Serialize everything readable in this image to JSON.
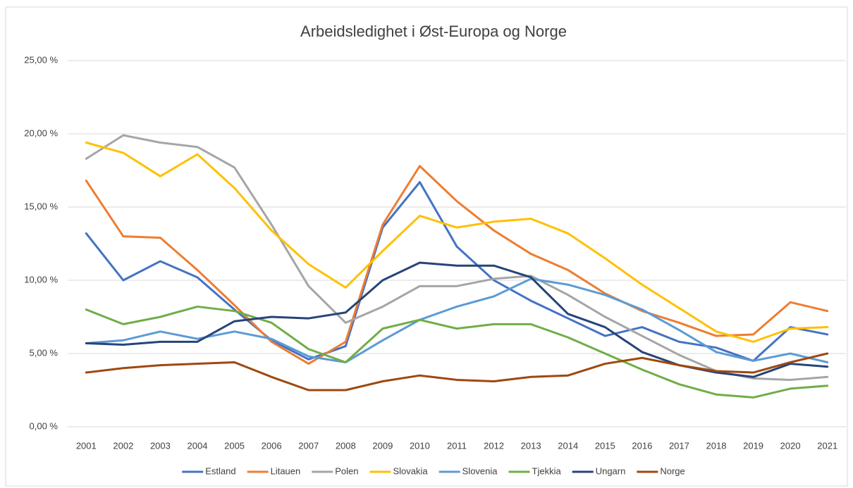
{
  "chart_data": {
    "type": "line",
    "title": "Arbeidsledighet i Øst-Europa og Norge",
    "categories": [
      "2001",
      "2002",
      "2003",
      "2004",
      "2005",
      "2006",
      "2007",
      "2008",
      "2009",
      "2010",
      "2011",
      "2012",
      "2013",
      "2014",
      "2015",
      "2016",
      "2017",
      "2018",
      "2019",
      "2020",
      "2021"
    ],
    "ylim": [
      0,
      25
    ],
    "yticks": [
      {
        "value": 0,
        "label": "0,00 %"
      },
      {
        "value": 5,
        "label": "5,00 %"
      },
      {
        "value": 10,
        "label": "10,00 %"
      },
      {
        "value": 15,
        "label": "15,00 %"
      },
      {
        "value": 20,
        "label": "20,00 %"
      },
      {
        "value": 25,
        "label": "25,00 %"
      }
    ],
    "grid": true,
    "legend": "bottom",
    "series": [
      {
        "name": "Estland",
        "color": "#4472c4",
        "values": [
          13.2,
          10.0,
          11.3,
          10.2,
          8.0,
          5.9,
          4.6,
          5.5,
          13.6,
          16.7,
          12.3,
          10.0,
          8.6,
          7.4,
          6.2,
          6.8,
          5.8,
          5.4,
          4.5,
          6.8,
          6.3
        ]
      },
      {
        "name": "Litauen",
        "color": "#ed7d31",
        "values": [
          16.8,
          13.0,
          12.9,
          10.7,
          8.3,
          5.8,
          4.3,
          5.8,
          13.8,
          17.8,
          15.4,
          13.4,
          11.8,
          10.7,
          9.1,
          7.9,
          7.1,
          6.2,
          6.3,
          8.5,
          7.9
        ]
      },
      {
        "name": "Polen",
        "color": "#a5a5a5",
        "values": [
          18.3,
          19.9,
          19.4,
          19.1,
          17.7,
          13.8,
          9.6,
          7.1,
          8.2,
          9.6,
          9.6,
          10.1,
          10.3,
          9.0,
          7.5,
          6.2,
          4.9,
          3.8,
          3.3,
          3.2,
          3.4
        ]
      },
      {
        "name": "Slovakia",
        "color": "#ffc000",
        "values": [
          19.4,
          18.7,
          17.1,
          18.6,
          16.3,
          13.4,
          11.1,
          9.5,
          12.0,
          14.4,
          13.6,
          14.0,
          14.2,
          13.2,
          11.5,
          9.7,
          8.1,
          6.5,
          5.8,
          6.7,
          6.8
        ]
      },
      {
        "name": "Slovenia",
        "color": "#5b9bd5",
        "values": [
          5.7,
          5.9,
          6.5,
          6.0,
          6.5,
          6.0,
          4.8,
          4.4,
          5.9,
          7.3,
          8.2,
          8.9,
          10.1,
          9.7,
          9.0,
          8.0,
          6.6,
          5.1,
          4.5,
          5.0,
          4.4
        ]
      },
      {
        "name": "Tjekkia",
        "color": "#70ad47",
        "values": [
          8.0,
          7.0,
          7.5,
          8.2,
          7.9,
          7.1,
          5.3,
          4.4,
          6.7,
          7.3,
          6.7,
          7.0,
          7.0,
          6.1,
          5.0,
          3.9,
          2.9,
          2.2,
          2.0,
          2.6,
          2.8
        ]
      },
      {
        "name": "Ungarn",
        "color": "#264478",
        "values": [
          5.7,
          5.6,
          5.8,
          5.8,
          7.2,
          7.5,
          7.4,
          7.8,
          10.0,
          11.2,
          11.0,
          11.0,
          10.2,
          7.7,
          6.8,
          5.1,
          4.2,
          3.7,
          3.4,
          4.3,
          4.1
        ]
      },
      {
        "name": "Norge",
        "color": "#9e480e",
        "values": [
          3.7,
          4.0,
          4.2,
          4.3,
          4.4,
          3.4,
          2.5,
          2.5,
          3.1,
          3.5,
          3.2,
          3.1,
          3.4,
          3.5,
          4.3,
          4.7,
          4.2,
          3.8,
          3.7,
          4.4,
          5.0
        ]
      }
    ]
  }
}
